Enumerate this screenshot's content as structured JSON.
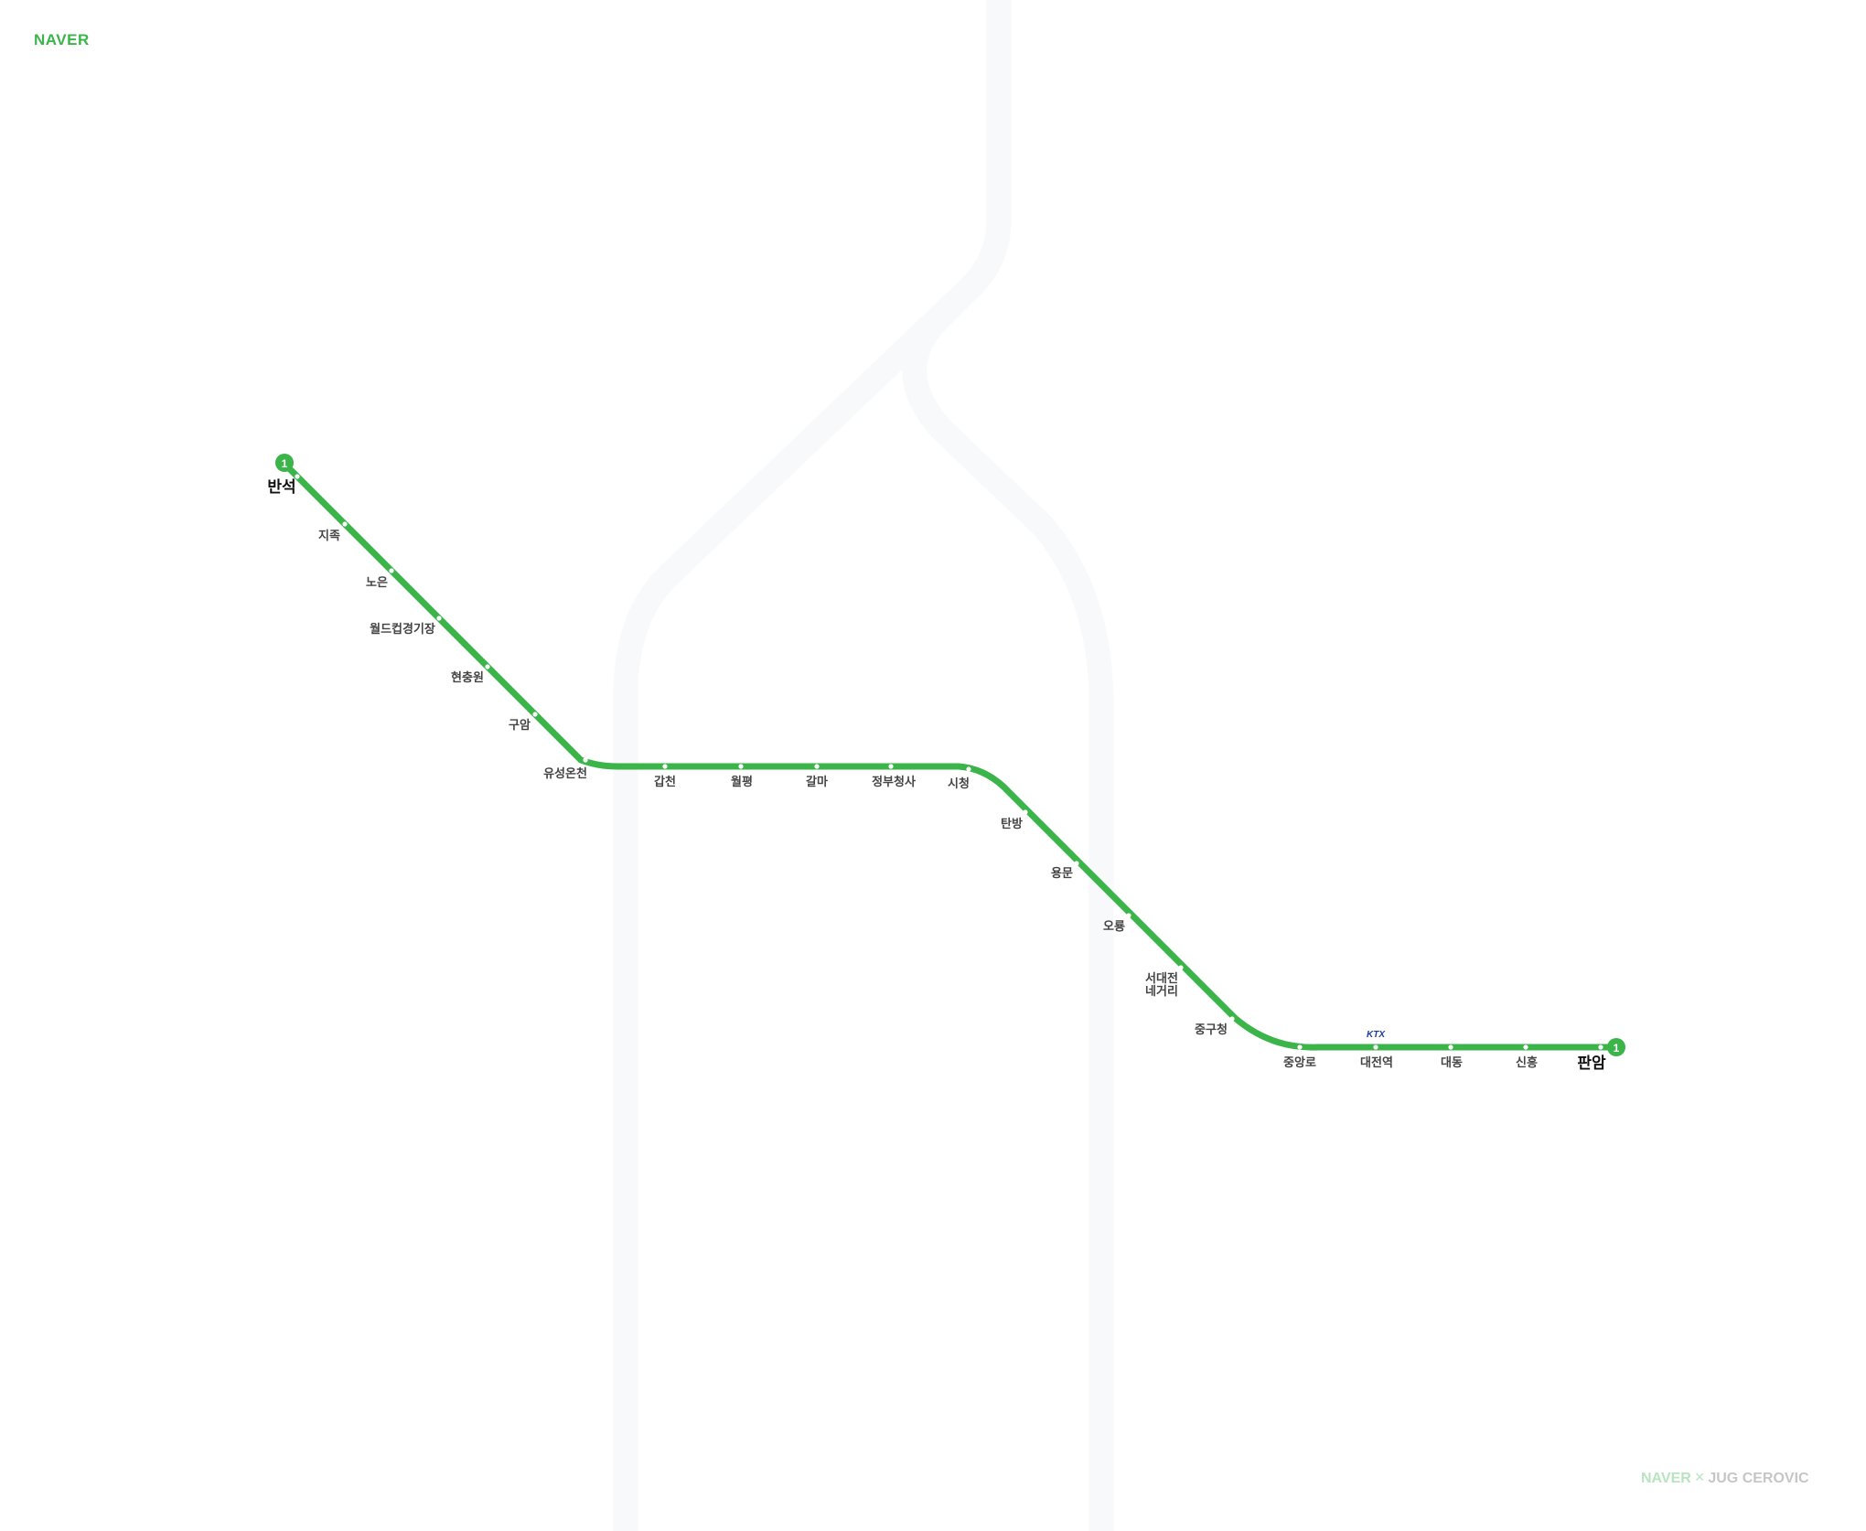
{
  "brand": {
    "logo": "NAVER"
  },
  "credit": {
    "left": "NAVER",
    "separator": "×",
    "right": "JUG CEROVIC"
  },
  "colors": {
    "line": "#3bb44a",
    "background_route": "#f7f9fb",
    "station_dot": "#ffffff",
    "label": "#444444",
    "terminal_label": "#111111",
    "credit_left": "#b9e4c0",
    "credit_right": "#c6c6c6",
    "ktx": "#1f3e9e"
  },
  "line": {
    "number": "1"
  },
  "stations": [
    {
      "id": "banseok",
      "name": "반석",
      "terminal": true
    },
    {
      "id": "jijok",
      "name": "지족"
    },
    {
      "id": "noeun",
      "name": "노은"
    },
    {
      "id": "worldcup",
      "name": "월드컵경기장"
    },
    {
      "id": "hyeonchungwon",
      "name": "현충원"
    },
    {
      "id": "guam",
      "name": "구암"
    },
    {
      "id": "yuseong",
      "name": "유성온천"
    },
    {
      "id": "gapcheon",
      "name": "갑천"
    },
    {
      "id": "wolpyeong",
      "name": "월평"
    },
    {
      "id": "galma",
      "name": "갈마"
    },
    {
      "id": "government",
      "name": "정부청사"
    },
    {
      "id": "cityhall",
      "name": "시청"
    },
    {
      "id": "tanbang",
      "name": "탄방"
    },
    {
      "id": "yongmun",
      "name": "용문"
    },
    {
      "id": "oryong",
      "name": "오룡"
    },
    {
      "id": "seodaejeon",
      "name": "서대전 네거리",
      "lines": [
        "서대전",
        "네거리"
      ]
    },
    {
      "id": "junggucheong",
      "name": "중구청"
    },
    {
      "id": "jungangno",
      "name": "중앙로"
    },
    {
      "id": "daejeon",
      "name": "대전역",
      "transfer": "KTX"
    },
    {
      "id": "daedong",
      "name": "대동"
    },
    {
      "id": "sinheung",
      "name": "신흥"
    },
    {
      "id": "panam",
      "name": "판암",
      "terminal": true
    }
  ]
}
